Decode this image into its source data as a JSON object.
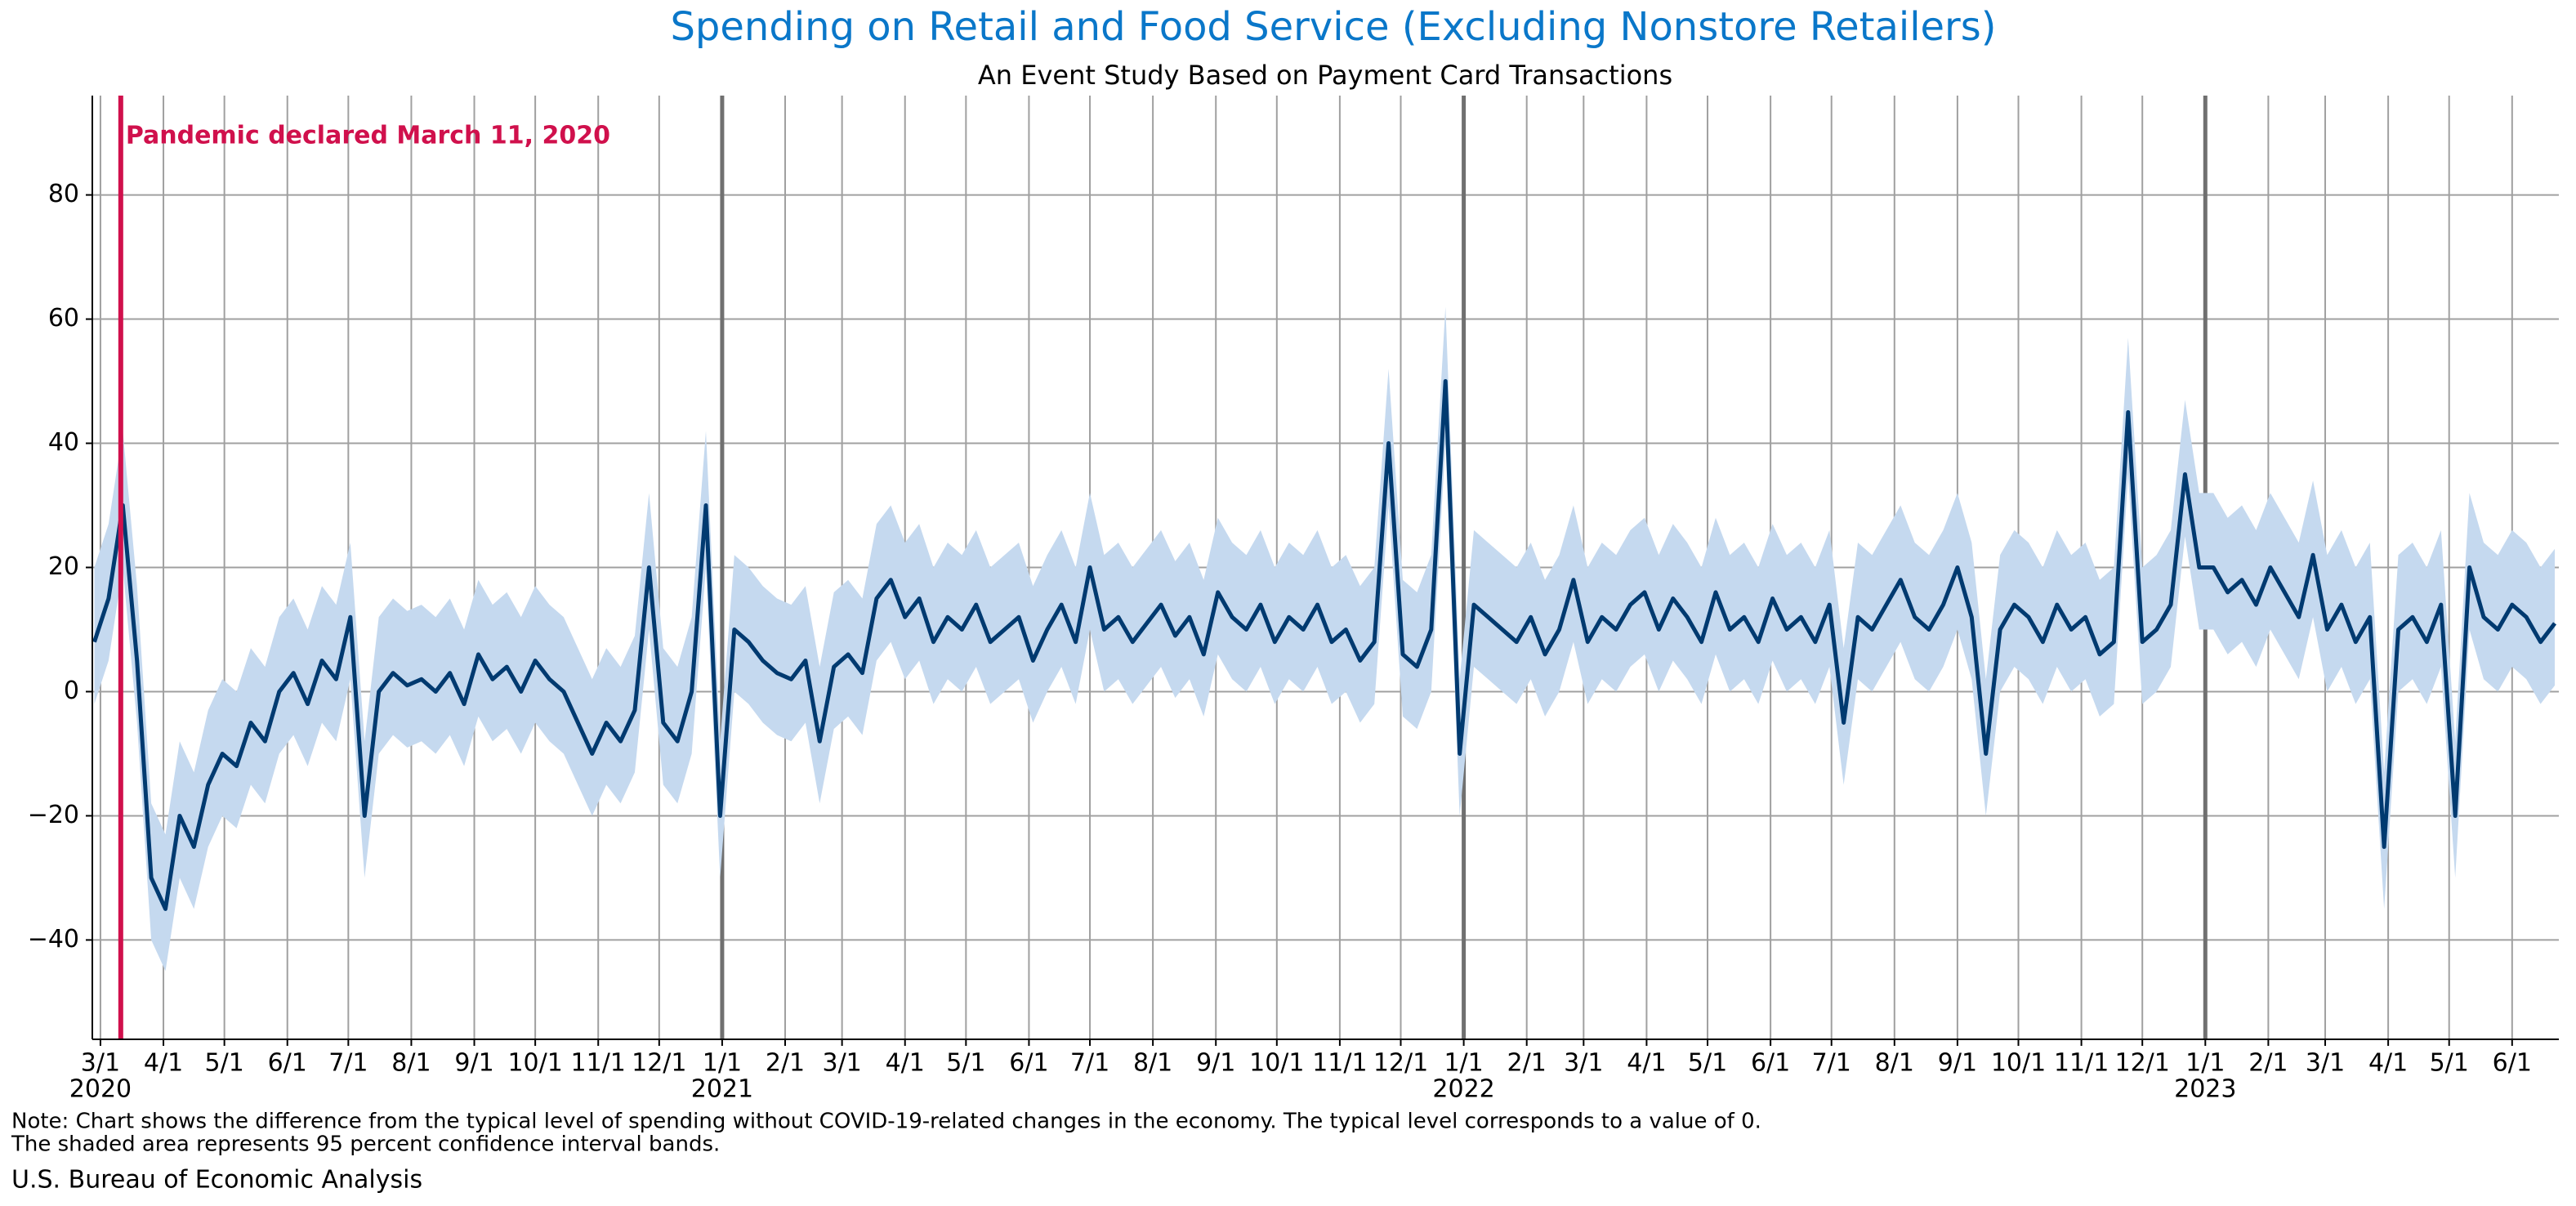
{
  "chart_data": {
    "type": "line",
    "title": "Spending on Retail and Food Service (Excluding Nonstore Retailers)",
    "subtitle": "An Event Study Based on Payment Card Transactions",
    "note_lines": [
      "Note: Chart shows the difference from the typical level of spending without COVID-19-related changes in the economy. The typical level corresponds to a value of 0.",
      "The shaded area represents 95 percent confidence interval bands."
    ],
    "source": "U.S. Bureau of Economic Analysis",
    "event": {
      "x": "2020-03-11",
      "label": "Pandemic declared March 11, 2020",
      "color": "#d0104c"
    },
    "xlim": [
      "2020-02-26",
      "2023-06-24"
    ],
    "ylim": [
      -56,
      96
    ],
    "yticks": [
      {
        "value": -40,
        "label": "−40"
      },
      {
        "value": -20,
        "label": "−20"
      },
      0,
      20,
      40,
      60,
      80
    ],
    "grid": true,
    "xticks": [
      {
        "value": "2020-03-01",
        "label": "3/1"
      },
      {
        "value": "2020-04-01",
        "label": "4/1"
      },
      {
        "value": "2020-05-01",
        "label": "5/1"
      },
      {
        "value": "2020-06-01",
        "label": "6/1"
      },
      {
        "value": "2020-07-01",
        "label": "7/1"
      },
      {
        "value": "2020-08-01",
        "label": "8/1"
      },
      {
        "value": "2020-09-01",
        "label": "9/1"
      },
      {
        "value": "2020-10-01",
        "label": "10/1"
      },
      {
        "value": "2020-11-01",
        "label": "11/1"
      },
      {
        "value": "2020-12-01",
        "label": "12/1"
      },
      {
        "value": "2021-01-01",
        "label": "1/1"
      },
      {
        "value": "2021-02-01",
        "label": "2/1"
      },
      {
        "value": "2021-03-01",
        "label": "3/1"
      },
      {
        "value": "2021-04-01",
        "label": "4/1"
      },
      {
        "value": "2021-05-01",
        "label": "5/1"
      },
      {
        "value": "2021-06-01",
        "label": "6/1"
      },
      {
        "value": "2021-07-01",
        "label": "7/1"
      },
      {
        "value": "2021-08-01",
        "label": "8/1"
      },
      {
        "value": "2021-09-01",
        "label": "9/1"
      },
      {
        "value": "2021-10-01",
        "label": "10/1"
      },
      {
        "value": "2021-11-01",
        "label": "11/1"
      },
      {
        "value": "2021-12-01",
        "label": "12/1"
      },
      {
        "value": "2022-01-01",
        "label": "1/1"
      },
      {
        "value": "2022-02-01",
        "label": "2/1"
      },
      {
        "value": "2022-03-01",
        "label": "3/1"
      },
      {
        "value": "2022-04-01",
        "label": "4/1"
      },
      {
        "value": "2022-05-01",
        "label": "5/1"
      },
      {
        "value": "2022-06-01",
        "label": "6/1"
      },
      {
        "value": "2022-07-01",
        "label": "7/1"
      },
      {
        "value": "2022-08-01",
        "label": "8/1"
      },
      {
        "value": "2022-09-01",
        "label": "9/1"
      },
      {
        "value": "2022-10-01",
        "label": "10/1"
      },
      {
        "value": "2022-11-01",
        "label": "11/1"
      },
      {
        "value": "2022-12-01",
        "label": "12/1"
      },
      {
        "value": "2023-01-01",
        "label": "1/1"
      },
      {
        "value": "2023-02-01",
        "label": "2/1"
      },
      {
        "value": "2023-03-01",
        "label": "3/1"
      },
      {
        "value": "2023-04-01",
        "label": "4/1"
      },
      {
        "value": "2023-05-01",
        "label": "5/1"
      },
      {
        "value": "2023-06-01",
        "label": "6/1"
      }
    ],
    "year_labels": [
      {
        "value": "2020-03-01",
        "label": "2020"
      },
      {
        "value": "2021-01-01",
        "label": "2021"
      },
      {
        "value": "2022-01-01",
        "label": "2022"
      },
      {
        "value": "2023-01-01",
        "label": "2023"
      }
    ],
    "x": [
      "2020-02-27",
      "2020-03-05",
      "2020-03-12",
      "2020-03-19",
      "2020-03-26",
      "2020-04-02",
      "2020-04-09",
      "2020-04-16",
      "2020-04-23",
      "2020-04-30",
      "2020-05-07",
      "2020-05-14",
      "2020-05-21",
      "2020-05-28",
      "2020-06-04",
      "2020-06-11",
      "2020-06-18",
      "2020-06-25",
      "2020-07-02",
      "2020-07-09",
      "2020-07-16",
      "2020-07-23",
      "2020-07-30",
      "2020-08-06",
      "2020-08-13",
      "2020-08-20",
      "2020-08-27",
      "2020-09-03",
      "2020-09-10",
      "2020-09-17",
      "2020-09-24",
      "2020-10-01",
      "2020-10-08",
      "2020-10-15",
      "2020-10-22",
      "2020-10-29",
      "2020-11-05",
      "2020-11-12",
      "2020-11-19",
      "2020-11-26",
      "2020-12-03",
      "2020-12-10",
      "2020-12-17",
      "2020-12-24",
      "2020-12-31",
      "2021-01-07",
      "2021-01-14",
      "2021-01-21",
      "2021-01-28",
      "2021-02-04",
      "2021-02-11",
      "2021-02-18",
      "2021-02-25",
      "2021-03-04",
      "2021-03-11",
      "2021-03-18",
      "2021-03-25",
      "2021-04-01",
      "2021-04-08",
      "2021-04-15",
      "2021-04-22",
      "2021-04-29",
      "2021-05-06",
      "2021-05-13",
      "2021-05-20",
      "2021-05-27",
      "2021-06-03",
      "2021-06-10",
      "2021-06-17",
      "2021-06-24",
      "2021-07-01",
      "2021-07-08",
      "2021-07-15",
      "2021-07-22",
      "2021-07-29",
      "2021-08-05",
      "2021-08-12",
      "2021-08-19",
      "2021-08-26",
      "2021-09-02",
      "2021-09-09",
      "2021-09-16",
      "2021-09-23",
      "2021-09-30",
      "2021-10-07",
      "2021-10-14",
      "2021-10-21",
      "2021-10-28",
      "2021-11-04",
      "2021-11-11",
      "2021-11-18",
      "2021-11-25",
      "2021-12-02",
      "2021-12-09",
      "2021-12-16",
      "2021-12-23",
      "2021-12-30",
      "2022-01-06",
      "2022-01-13",
      "2022-01-20",
      "2022-01-27",
      "2022-02-03",
      "2022-02-10",
      "2022-02-17",
      "2022-02-24",
      "2022-03-03",
      "2022-03-10",
      "2022-03-17",
      "2022-03-24",
      "2022-03-31",
      "2022-04-07",
      "2022-04-14",
      "2022-04-21",
      "2022-04-28",
      "2022-05-05",
      "2022-05-12",
      "2022-05-19",
      "2022-05-26",
      "2022-06-02",
      "2022-06-09",
      "2022-06-16",
      "2022-06-23",
      "2022-06-30",
      "2022-07-07",
      "2022-07-14",
      "2022-07-21",
      "2022-07-28",
      "2022-08-04",
      "2022-08-11",
      "2022-08-18",
      "2022-08-25",
      "2022-09-01",
      "2022-09-08",
      "2022-09-15",
      "2022-09-22",
      "2022-09-29",
      "2022-10-06",
      "2022-10-13",
      "2022-10-20",
      "2022-10-27",
      "2022-11-03",
      "2022-11-10",
      "2022-11-17",
      "2022-11-24",
      "2022-12-01",
      "2022-12-08",
      "2022-12-15",
      "2022-12-22",
      "2022-12-29",
      "2023-01-05",
      "2023-01-12",
      "2023-01-19",
      "2023-01-26",
      "2023-02-02",
      "2023-02-09",
      "2023-02-16",
      "2023-02-23",
      "2023-03-02",
      "2023-03-09",
      "2023-03-16",
      "2023-03-23",
      "2023-03-30",
      "2023-04-06",
      "2023-04-13",
      "2023-04-20",
      "2023-04-27",
      "2023-05-04",
      "2023-05-11",
      "2023-05-18",
      "2023-05-25",
      "2023-06-01",
      "2023-06-08",
      "2023-06-15",
      "2023-06-22"
    ],
    "line": {
      "color": "#003a70",
      "values": [
        8,
        15,
        30,
        5,
        -30,
        -35,
        -20,
        -25,
        -15,
        -10,
        -12,
        -5,
        -8,
        0,
        3,
        -2,
        5,
        2,
        12,
        -20,
        0,
        3,
        1,
        2,
        0,
        3,
        -2,
        6,
        2,
        4,
        0,
        5,
        2,
        0,
        -5,
        -10,
        -5,
        -8,
        -3,
        20,
        -5,
        -8,
        0,
        30,
        -20,
        10,
        8,
        5,
        3,
        2,
        5,
        -8,
        4,
        6,
        3,
        15,
        18,
        12,
        15,
        8,
        12,
        10,
        14,
        8,
        10,
        12,
        5,
        10,
        14,
        8,
        20,
        10,
        12,
        8,
        11,
        14,
        9,
        12,
        6,
        16,
        12,
        10,
        14,
        8,
        12,
        10,
        14,
        8,
        10,
        5,
        8,
        40,
        6,
        4,
        10,
        50,
        -10,
        14,
        12,
        10,
        8,
        12,
        6,
        10,
        18,
        8,
        12,
        10,
        14,
        16,
        10,
        15,
        12,
        8,
        16,
        10,
        12,
        8,
        15,
        10,
        12,
        8,
        14,
        -5,
        12,
        10,
        14,
        18,
        12,
        10,
        14,
        20,
        12,
        -10,
        10,
        14,
        12,
        8,
        14,
        10,
        12,
        6,
        8,
        45,
        8,
        10,
        14,
        35,
        20,
        20,
        16,
        18,
        14,
        20,
        16,
        12,
        22,
        10,
        14,
        8,
        12,
        -25,
        10,
        12,
        8,
        14,
        -20,
        20,
        12,
        10,
        14,
        12,
        8,
        11
      ]
    },
    "band": {
      "color": "#c5d9ef",
      "lower": [
        -2,
        5,
        20,
        -5,
        -40,
        -45,
        -30,
        -35,
        -25,
        -20,
        -22,
        -15,
        -18,
        -10,
        -7,
        -12,
        -5,
        -8,
        2,
        -30,
        -10,
        -7,
        -9,
        -8,
        -10,
        -7,
        -12,
        -4,
        -8,
        -6,
        -10,
        -5,
        -8,
        -10,
        -15,
        -20,
        -15,
        -18,
        -13,
        10,
        -15,
        -18,
        -10,
        20,
        -30,
        0,
        -2,
        -5,
        -7,
        -8,
        -5,
        -18,
        -6,
        -4,
        -7,
        5,
        8,
        2,
        5,
        -2,
        2,
        0,
        4,
        -2,
        0,
        2,
        -5,
        0,
        4,
        -2,
        10,
        0,
        2,
        -2,
        1,
        4,
        -1,
        2,
        -4,
        6,
        2,
        0,
        4,
        -2,
        2,
        0,
        4,
        -2,
        0,
        -5,
        -2,
        30,
        -4,
        -6,
        0,
        40,
        -20,
        4,
        2,
        0,
        -2,
        2,
        -4,
        0,
        8,
        -2,
        2,
        0,
        4,
        6,
        0,
        5,
        2,
        -2,
        6,
        0,
        2,
        -2,
        5,
        0,
        2,
        -2,
        4,
        -15,
        2,
        0,
        4,
        8,
        2,
        0,
        4,
        10,
        2,
        -20,
        0,
        4,
        2,
        -2,
        4,
        0,
        2,
        -4,
        -2,
        35,
        -2,
        0,
        4,
        25,
        10,
        10,
        6,
        8,
        4,
        10,
        6,
        2,
        12,
        0,
        4,
        -2,
        2,
        -35,
        0,
        2,
        -2,
        4,
        -30,
        10,
        2,
        0,
        4,
        2,
        -2,
        1
      ],
      "upper": [
        20,
        27,
        42,
        17,
        -18,
        -23,
        -8,
        -13,
        -3,
        2,
        0,
        7,
        4,
        12,
        15,
        10,
        17,
        14,
        24,
        -8,
        12,
        15,
        13,
        14,
        12,
        15,
        10,
        18,
        14,
        16,
        12,
        17,
        14,
        12,
        7,
        2,
        7,
        4,
        9,
        32,
        7,
        4,
        12,
        42,
        -8,
        22,
        20,
        17,
        15,
        14,
        17,
        4,
        16,
        18,
        15,
        27,
        30,
        24,
        27,
        20,
        24,
        22,
        26,
        20,
        22,
        24,
        17,
        22,
        26,
        20,
        32,
        22,
        24,
        20,
        23,
        26,
        21,
        24,
        18,
        28,
        24,
        22,
        26,
        20,
        24,
        22,
        26,
        20,
        22,
        17,
        20,
        52,
        18,
        16,
        22,
        62,
        2,
        26,
        24,
        22,
        20,
        24,
        18,
        22,
        30,
        20,
        24,
        22,
        26,
        28,
        22,
        27,
        24,
        20,
        28,
        22,
        24,
        20,
        27,
        22,
        24,
        20,
        26,
        7,
        24,
        22,
        26,
        30,
        24,
        22,
        26,
        32,
        24,
        2,
        22,
        26,
        24,
        20,
        26,
        22,
        24,
        18,
        20,
        57,
        20,
        22,
        26,
        47,
        32,
        32,
        28,
        30,
        26,
        32,
        28,
        24,
        34,
        22,
        26,
        20,
        24,
        -13,
        22,
        24,
        20,
        26,
        -8,
        32,
        24,
        22,
        26,
        24,
        20,
        23
      ]
    }
  }
}
